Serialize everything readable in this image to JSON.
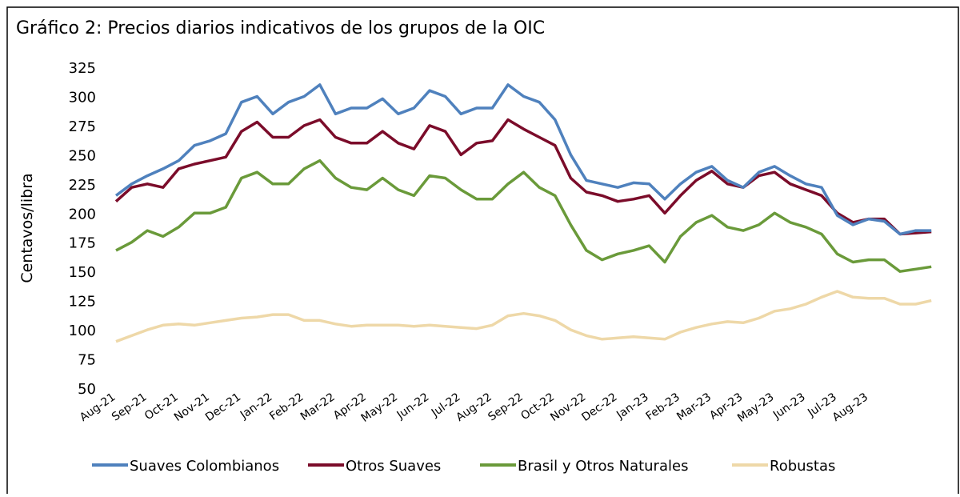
{
  "chart_data": {
    "type": "line",
    "title": "Gráfico 2: Precios diarios indicativos de los grupos de la OIC",
    "y_label": "Centavos/libra",
    "categories": [
      "Aug-21",
      null,
      "Sep-21",
      null,
      "Oct-21",
      null,
      "Nov-21",
      null,
      "Dec-21",
      null,
      "Jan-22",
      null,
      "Feb-22",
      null,
      "Mar-22",
      null,
      "Apr-22",
      null,
      "May-22",
      null,
      "Jun-22",
      null,
      "Jul-22",
      null,
      "Aug-22",
      null,
      "Sep-22",
      null,
      "Oct-22",
      null,
      "Nov-22",
      null,
      "Dec-22",
      null,
      "Jan-23",
      null,
      "Feb-23",
      null,
      "Mar-23",
      null,
      "Apr-23",
      null,
      "May-23",
      null,
      "Jun-23",
      null,
      "Jul-23",
      null,
      "Aug-23",
      null,
      null,
      null,
      null
    ],
    "series": [
      {
        "name": "Suaves Colombianos",
        "color": "#4f81bd",
        "values": [
          215,
          225,
          232,
          238,
          245,
          258,
          262,
          268,
          295,
          300,
          285,
          295,
          300,
          310,
          285,
          290,
          290,
          298,
          285,
          290,
          305,
          300,
          285,
          290,
          290,
          310,
          300,
          295,
          280,
          250,
          228,
          225,
          222,
          226,
          225,
          212,
          225,
          235,
          240,
          228,
          222,
          235,
          240,
          232,
          225,
          222,
          198,
          190,
          195,
          193,
          182,
          185,
          185
        ]
      },
      {
        "name": "Otros Suaves",
        "color": "#7b0c2a",
        "values": [
          210,
          222,
          225,
          222,
          238,
          242,
          245,
          248,
          270,
          278,
          265,
          265,
          275,
          280,
          265,
          260,
          260,
          270,
          260,
          255,
          275,
          270,
          250,
          260,
          262,
          280,
          272,
          265,
          258,
          230,
          218,
          215,
          210,
          212,
          215,
          200,
          215,
          228,
          236,
          225,
          222,
          232,
          235,
          225,
          220,
          215,
          200,
          192,
          195,
          195,
          182,
          183,
          184
        ]
      },
      {
        "name": "Brasil y Otros Naturales",
        "color": "#6a9a3a",
        "values": [
          168,
          175,
          185,
          180,
          188,
          200,
          200,
          205,
          230,
          235,
          225,
          225,
          238,
          245,
          230,
          222,
          220,
          230,
          220,
          215,
          232,
          230,
          220,
          212,
          212,
          225,
          235,
          222,
          215,
          190,
          168,
          160,
          165,
          168,
          172,
          158,
          180,
          192,
          198,
          188,
          185,
          190,
          200,
          192,
          188,
          182,
          165,
          158,
          160,
          160,
          150,
          152,
          154
        ]
      },
      {
        "name": "Robustas",
        "color": "#eed8a8",
        "values": [
          90,
          95,
          100,
          104,
          105,
          104,
          106,
          108,
          110,
          111,
          113,
          113,
          108,
          108,
          105,
          103,
          104,
          104,
          104,
          103,
          104,
          103,
          102,
          101,
          104,
          112,
          114,
          112,
          108,
          100,
          95,
          92,
          93,
          94,
          93,
          92,
          98,
          102,
          105,
          107,
          106,
          110,
          116,
          118,
          122,
          128,
          133,
          128,
          127,
          127,
          122,
          122,
          125
        ]
      }
    ],
    "ylim": [
      50,
      325
    ],
    "yticks": [
      50,
      75,
      100,
      125,
      150,
      175,
      200,
      225,
      250,
      275,
      300,
      325
    ],
    "grid": false,
    "legend": "bottom"
  }
}
